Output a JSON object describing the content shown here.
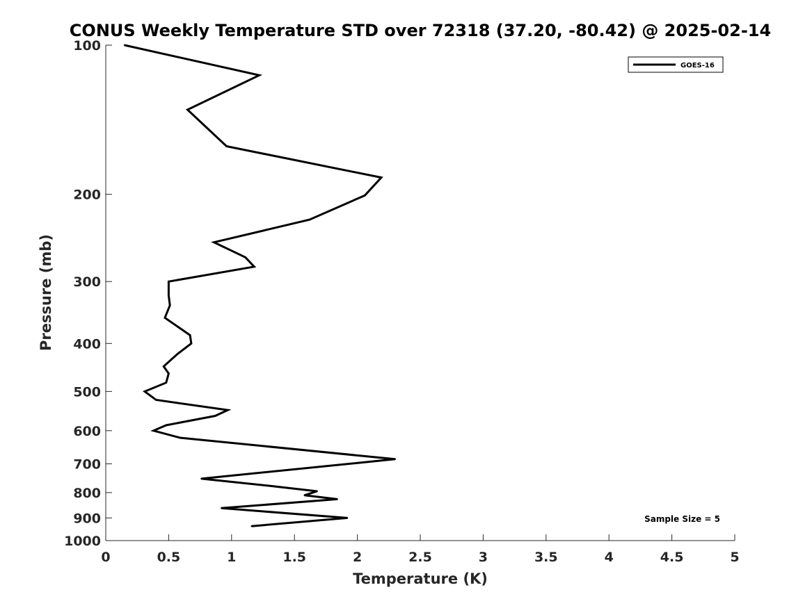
{
  "chart_data": {
    "type": "line",
    "title": "CONUS Weekly Temperature STD over 72318 (37.20, -80.42) @ 2025-02-14",
    "xlabel": "Temperature (K)",
    "ylabel": "Pressure (mb)",
    "xlim": [
      0,
      5
    ],
    "ylim": [
      100,
      1000
    ],
    "y_scale": "log",
    "y_reversed": true,
    "x_ticks": [
      0,
      0.5,
      1,
      1.5,
      2,
      2.5,
      3,
      3.5,
      4,
      4.5,
      5
    ],
    "x_tick_labels": [
      "0",
      "0.5",
      "1",
      "1.5",
      "2",
      "2.5",
      "3",
      "3.5",
      "4",
      "4.5",
      "5"
    ],
    "y_ticks": [
      100,
      200,
      300,
      400,
      500,
      600,
      700,
      800,
      900,
      1000
    ],
    "y_tick_labels": [
      "100",
      "200",
      "300",
      "400",
      "500",
      "600",
      "700",
      "800",
      "900",
      "1000"
    ],
    "grid": false,
    "legend_position": "top-right",
    "annotation": "Sample Size = 5",
    "series": [
      {
        "name": "GOES-16",
        "color": "#000000",
        "points": [
          {
            "x": 0.15,
            "y": 100
          },
          {
            "x": 1.22,
            "y": 115
          },
          {
            "x": 0.65,
            "y": 135
          },
          {
            "x": 0.96,
            "y": 160
          },
          {
            "x": 2.19,
            "y": 185
          },
          {
            "x": 2.06,
            "y": 201
          },
          {
            "x": 1.62,
            "y": 225
          },
          {
            "x": 0.86,
            "y": 250
          },
          {
            "x": 1.11,
            "y": 268
          },
          {
            "x": 1.18,
            "y": 280
          },
          {
            "x": 0.5,
            "y": 300
          },
          {
            "x": 0.5,
            "y": 320
          },
          {
            "x": 0.51,
            "y": 335
          },
          {
            "x": 0.47,
            "y": 355
          },
          {
            "x": 0.67,
            "y": 385
          },
          {
            "x": 0.68,
            "y": 400
          },
          {
            "x": 0.57,
            "y": 420
          },
          {
            "x": 0.46,
            "y": 445
          },
          {
            "x": 0.5,
            "y": 460
          },
          {
            "x": 0.48,
            "y": 480
          },
          {
            "x": 0.31,
            "y": 500
          },
          {
            "x": 0.4,
            "y": 520
          },
          {
            "x": 0.97,
            "y": 545
          },
          {
            "x": 0.87,
            "y": 560
          },
          {
            "x": 0.48,
            "y": 585
          },
          {
            "x": 0.38,
            "y": 600
          },
          {
            "x": 0.59,
            "y": 620
          },
          {
            "x": 2.3,
            "y": 685
          },
          {
            "x": 0.76,
            "y": 750
          },
          {
            "x": 1.3,
            "y": 775
          },
          {
            "x": 1.68,
            "y": 795
          },
          {
            "x": 1.58,
            "y": 810
          },
          {
            "x": 1.84,
            "y": 825
          },
          {
            "x": 0.92,
            "y": 860
          },
          {
            "x": 1.92,
            "y": 900
          },
          {
            "x": 1.16,
            "y": 935
          }
        ]
      }
    ]
  }
}
